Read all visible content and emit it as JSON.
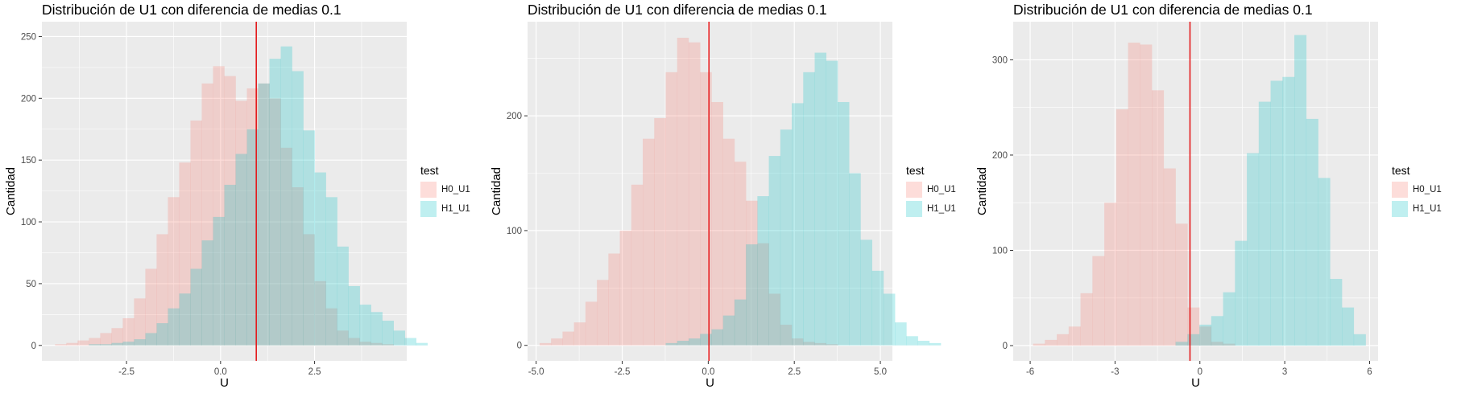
{
  "legend": {
    "title": "test",
    "items": [
      {
        "label": "H0_U1",
        "color": "#F8766D"
      },
      {
        "label": "H1_U1",
        "color": "#00BFC4"
      }
    ]
  },
  "colors": {
    "panel_bg": "#EBEBEB",
    "grid": "#FFFFFF",
    "vline": "#E41A1C",
    "H0_fill": "#F8766D",
    "H1_fill": "#00BFC4"
  },
  "chart_data": [
    {
      "type": "bar",
      "title": "Distribución de U1 con diferencia de medias 0.1",
      "xlabel": "U",
      "ylabel": "Cantidad",
      "xlim": [
        -4.75,
        4.95
      ],
      "ylim": [
        -12.5,
        262
      ],
      "xticks": [
        -2.5,
        0.0,
        2.5
      ],
      "xtick_labels": [
        "-2.5",
        "0.0",
        "2.5"
      ],
      "yticks": [
        0,
        50,
        100,
        150,
        200,
        250
      ],
      "ytick_labels": [
        "0",
        "50",
        "100",
        "150",
        "200",
        "250"
      ],
      "vline": 0.95,
      "bin_start": -4.4,
      "bin_width": 0.3,
      "series": [
        {
          "name": "H0_U1",
          "values": [
            1,
            2,
            4,
            6,
            10,
            14,
            22,
            38,
            62,
            90,
            120,
            148,
            182,
            212,
            226,
            218,
            198,
            208,
            212,
            200,
            160,
            128,
            90,
            52,
            30,
            12,
            6,
            3,
            2,
            1
          ]
        },
        {
          "name": "H1_U1",
          "values": [
            0,
            0,
            0,
            1,
            1,
            2,
            3,
            5,
            10,
            18,
            30,
            42,
            62,
            85,
            104,
            130,
            155,
            175,
            212,
            232,
            242,
            222,
            174,
            140,
            120,
            80,
            48,
            33,
            27,
            20,
            12,
            6,
            2
          ]
        }
      ]
    },
    {
      "type": "bar",
      "title": "Distribución de U1 con diferencia de medias 0.1",
      "xlabel": "U",
      "ylabel": "Cantidad",
      "xlim": [
        -5.25,
        5.35
      ],
      "ylim": [
        -13.5,
        282
      ],
      "xticks": [
        -5.0,
        -2.5,
        0.0,
        2.5,
        5.0
      ],
      "xtick_labels": [
        "-5.0",
        "-2.5",
        "0.0",
        "2.5",
        "5.0"
      ],
      "yticks": [
        0,
        100,
        200
      ],
      "ytick_labels": [
        "0",
        "100",
        "200"
      ],
      "vline": 0.02,
      "bin_start": -4.9,
      "bin_width": 0.333,
      "series": [
        {
          "name": "H0_U1",
          "values": [
            2,
            6,
            12,
            20,
            38,
            57,
            80,
            100,
            140,
            180,
            198,
            238,
            268,
            264,
            238,
            212,
            180,
            160,
            126,
            89,
            45,
            18,
            6,
            3,
            2,
            1
          ]
        },
        {
          "name": "H1_U1",
          "values": [
            0,
            0,
            0,
            0,
            0,
            0,
            0,
            0,
            0,
            0,
            0,
            2,
            4,
            6,
            10,
            14,
            26,
            40,
            88,
            130,
            165,
            188,
            211,
            238,
            255,
            248,
            212,
            150,
            92,
            65,
            45,
            20,
            8,
            4,
            2
          ]
        }
      ]
    },
    {
      "type": "bar",
      "title": "Distribución de U1 con diferencia de medias 0.1",
      "xlabel": "U",
      "ylabel": "Cantidad",
      "xlim": [
        -6.6,
        6.3
      ],
      "ylim": [
        -16,
        340
      ],
      "xticks": [
        -6,
        -3,
        0,
        3,
        6
      ],
      "xtick_labels": [
        "-6",
        "-3",
        "0",
        "3",
        "6"
      ],
      "yticks": [
        0,
        100,
        200,
        300
      ],
      "ytick_labels": [
        "0",
        "100",
        "200",
        "300"
      ],
      "vline": -0.35,
      "bin_start": -5.9,
      "bin_width": 0.42,
      "series": [
        {
          "name": "H0_U1",
          "values": [
            2,
            6,
            12,
            20,
            55,
            94,
            150,
            248,
            318,
            316,
            268,
            186,
            128,
            40,
            20,
            4,
            2
          ]
        },
        {
          "name": "H1_U1",
          "values": [
            0,
            0,
            0,
            0,
            0,
            0,
            0,
            0,
            0,
            0,
            0,
            0,
            4,
            12,
            22,
            31,
            56,
            110,
            202,
            256,
            278,
            282,
            326,
            238,
            176,
            70,
            40,
            12
          ]
        }
      ]
    }
  ]
}
